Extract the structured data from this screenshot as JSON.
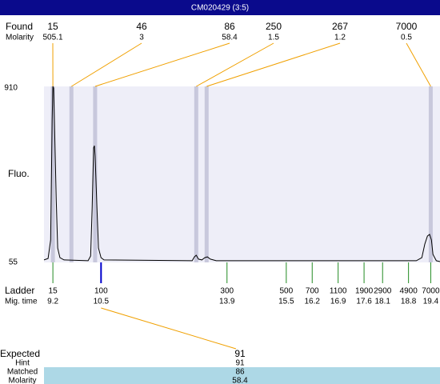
{
  "chart_data": {
    "type": "line",
    "title": "CM020429 (3:5)",
    "ylabel": "Fluo.",
    "ylim": [
      55,
      910
    ],
    "yticks": [
      55,
      910
    ],
    "xlim": [
      8.96,
      19.65
    ],
    "plot_background": "#eeeef8",
    "x": [
      8.96,
      9.07,
      9.14,
      9.18,
      9.2,
      9.22,
      9.24,
      9.29,
      9.33,
      9.39,
      9.5,
      10.15,
      10.22,
      10.26,
      10.3,
      10.32,
      10.34,
      10.39,
      10.43,
      10.5,
      10.58,
      12.96,
      13.02,
      13.07,
      13.13,
      13.22,
      13.3,
      13.37,
      13.45,
      13.61,
      19.01,
      19.16,
      19.24,
      19.31,
      19.37,
      19.42,
      19.46,
      19.55,
      19.65
    ],
    "series": [
      {
        "color": "#000000",
        "values": [
          67,
          74,
          164,
          747,
          910,
          902,
          747,
          358,
          125,
          78,
          67,
          63,
          86,
          319,
          611,
          622,
          572,
          319,
          125,
          78,
          67,
          63,
          82,
          90,
          71,
          67,
          78,
          82,
          71,
          63,
          63,
          78,
          144,
          183,
          191,
          164,
          94,
          63,
          59
        ]
      }
    ],
    "found": {
      "label": "Found",
      "molarity_label": "Molarity",
      "sizes": [
        15,
        46,
        86,
        250,
        267,
        7000
      ],
      "molarity": [
        505.1,
        3,
        58.4,
        1.5,
        1.2,
        0.5
      ],
      "mig_times": [
        9.2,
        9.7,
        10.34,
        13.07,
        13.35,
        19.4
      ],
      "band_color": "#c8c8dc",
      "link_color": "#f0a000"
    },
    "ladder": {
      "label": "Ladder",
      "time_label": "Mig. time",
      "sizes": [
        15,
        100,
        300,
        500,
        700,
        1100,
        1900,
        2900,
        4900,
        7000
      ],
      "mig_times": [
        9.2,
        10.5,
        13.9,
        15.5,
        16.2,
        16.9,
        17.6,
        18.1,
        18.8,
        19.4
      ],
      "color": "#228b22",
      "selected": 1,
      "selected_color": "#0000cc"
    },
    "expected": {
      "labels": [
        "Expected",
        "Hint",
        "Matched",
        "Molarity"
      ],
      "values": [
        91,
        91,
        86,
        58.4
      ],
      "highlight_color": "#add8e6"
    }
  }
}
